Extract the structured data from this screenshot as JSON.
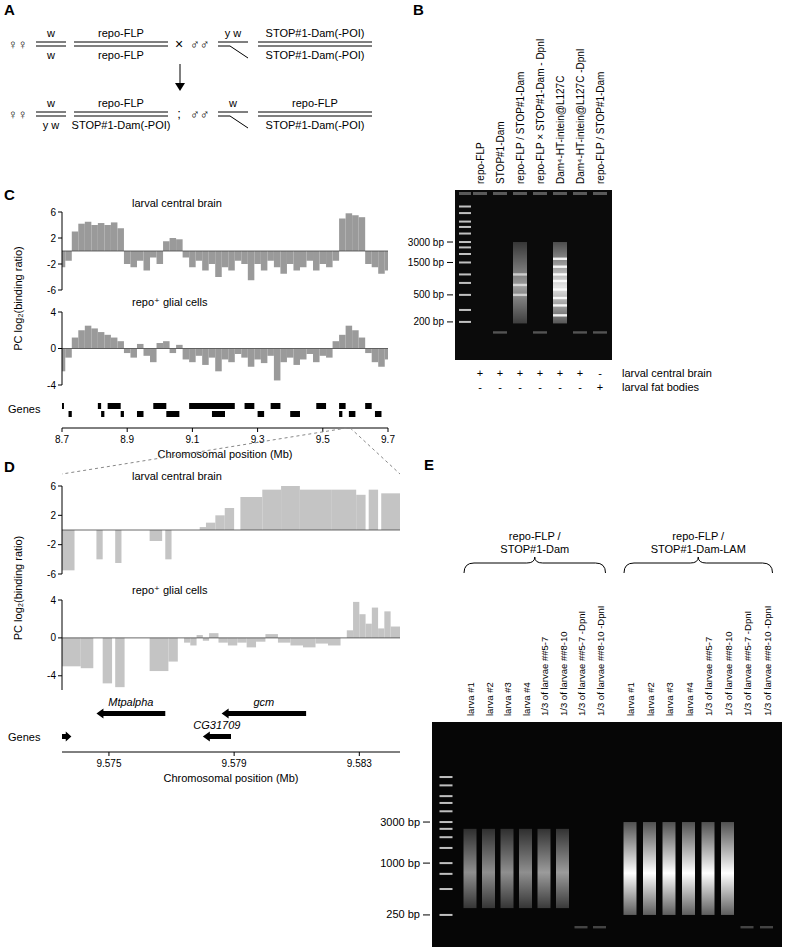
{
  "A": {
    "label": "A",
    "parents": [
      {
        "sex": "♀♀",
        "x": [
          "w",
          "w"
        ],
        "autosome": [
          "repo-FLP",
          "repo-FLP"
        ]
      },
      {
        "sex": "♂♂",
        "x": [
          "y w"
        ],
        "autosome": [
          "STOP#1-Dam(-POI)",
          "STOP#1-Dam(-POI)"
        ]
      }
    ],
    "cross_symbol": "×",
    "progeny": [
      {
        "sex": "♀♀",
        "x": [
          "w",
          "y w"
        ],
        "autosome": [
          "repo-FLP",
          "STOP#1-Dam(-POI)"
        ]
      },
      {
        "sex": "♂♂",
        "x": [
          "w"
        ],
        "autosome": [
          "repo-FLP",
          "STOP#1-Dam(-POI)"
        ]
      }
    ],
    "separator": ";"
  },
  "B": {
    "label": "B",
    "gel": {
      "log": true,
      "ylim": [
        55,
        17500
      ],
      "yticks": [
        {
          "value": 3000,
          "label": "3000 bp"
        },
        {
          "value": 1500,
          "label": "1500 bp"
        },
        {
          "value": 500,
          "label": "500 bp"
        },
        {
          "value": 200,
          "label": "200 bp"
        }
      ],
      "ladder": [
        10000,
        8000,
        6000,
        5000,
        4000,
        3000,
        2500,
        2000,
        1500,
        1000,
        750,
        500,
        300,
        200
      ]
    },
    "lanes": [
      {
        "label": "repo-FLP",
        "marks": [
          "+",
          "-"
        ],
        "smear": null,
        "bands": []
      },
      {
        "label": "STOP#1-Dam",
        "marks": [
          "+",
          "-"
        ],
        "smear": null,
        "bands": [
          140
        ],
        "intensity": 0.3
      },
      {
        "label": "repo-FLP / STOP#1-Dam",
        "marks": [
          "+",
          "-"
        ],
        "smear": [
          190,
          3000
        ],
        "bands": [
          500,
          700,
          1000
        ],
        "intensity": 0.6
      },
      {
        "label": "repo-FLP × STOP#1-Dam - DpnI",
        "marks": [
          "+",
          "-"
        ],
        "smear": null,
        "bands": [
          140
        ],
        "intensity": 0.3
      },
      {
        "label": "Dam⁴-HT-intein@L127C",
        "marks": [
          "+",
          "-"
        ],
        "smear": [
          190,
          3000
        ],
        "bands": [
          250,
          350,
          450,
          600,
          800,
          1000,
          1300,
          1700
        ],
        "intensity": 0.9
      },
      {
        "label": "Dam⁴-HT-intein@L127C -DpnI",
        "marks": [
          "+",
          "-"
        ],
        "smear": null,
        "bands": [
          140
        ],
        "intensity": 0.3
      },
      {
        "label": "repo-FLP / STOP#1-Dam",
        "marks": [
          "-",
          "+"
        ],
        "smear": null,
        "bands": [
          140
        ],
        "intensity": 0.3
      }
    ],
    "rows": [
      "larval central brain",
      "larval fat bodies"
    ]
  },
  "chart_data": [
    {
      "type": "bar",
      "panel": "C",
      "ylabel": "PC log₂(binding ratio)",
      "xlabel": "Chromosomal position (Mb)",
      "xlim": [
        8.7,
        9.7
      ],
      "xticks": [
        8.7,
        8.9,
        9.1,
        9.3,
        9.5,
        9.7
      ],
      "x": [
        8.7,
        8.72,
        8.74,
        8.76,
        8.78,
        8.8,
        8.82,
        8.84,
        8.86,
        8.88,
        8.9,
        8.92,
        8.94,
        8.96,
        8.98,
        9,
        9.02,
        9.04,
        9.06,
        9.08,
        9.1,
        9.12,
        9.14,
        9.16,
        9.18,
        9.2,
        9.22,
        9.24,
        9.26,
        9.28,
        9.3,
        9.32,
        9.34,
        9.36,
        9.38,
        9.4,
        9.42,
        9.44,
        9.46,
        9.48,
        9.5,
        9.52,
        9.54,
        9.56,
        9.58,
        9.6,
        9.62,
        9.64,
        9.66,
        9.68,
        9.7
      ],
      "series": [
        {
          "name": "larval central brain",
          "color": "#9a9a9a",
          "ylim": [
            -6,
            6
          ],
          "yticks": [
            6,
            2,
            -2,
            -6
          ],
          "values": [
            -2.5,
            -1.5,
            3,
            4.2,
            4.5,
            4,
            4.3,
            4,
            4.4,
            3.5,
            -2,
            -2.5,
            -1.5,
            -3,
            -1,
            -2,
            1.5,
            2,
            1.8,
            -1,
            -2.5,
            -1.5,
            -3,
            -2,
            -4,
            -2.5,
            -3,
            -1.5,
            -2,
            -4.5,
            -2,
            -3,
            -1.5,
            -2.5,
            -3.5,
            -2,
            -3,
            -2.5,
            -1.5,
            -3,
            -2,
            -2.5,
            -1.5,
            5,
            5.8,
            5.5,
            5.2,
            -2,
            -2.5,
            -3.5,
            -3
          ]
        },
        {
          "name": "repo⁺ glial cells",
          "color": "#9a9a9a",
          "ylim": [
            -4,
            4
          ],
          "yticks": [
            4,
            0,
            -4
          ],
          "values": [
            -2.5,
            -1,
            1.2,
            2,
            2.5,
            2.2,
            1.8,
            1.5,
            1.2,
            0.8,
            -0.5,
            -1,
            0.5,
            -0.8,
            -1.5,
            0.6,
            0.8,
            -0.5,
            0.4,
            -1.2,
            -1.5,
            -0.8,
            -1.8,
            -1,
            -2.5,
            -1.2,
            -1.5,
            -0.6,
            -1,
            -2,
            -1.2,
            -1.6,
            -0.8,
            -3.5,
            -1.5,
            -1,
            -1.8,
            -1.2,
            -0.6,
            -1.5,
            -0.8,
            -1,
            0.8,
            1.5,
            2.5,
            2,
            1.2,
            -0.5,
            -1.5,
            -2,
            -1.2
          ]
        }
      ],
      "genes": {
        "label": "Genes",
        "items": [
          {
            "start": 8.7,
            "end": 8.706,
            "row": 0
          },
          {
            "start": 8.81,
            "end": 8.82,
            "row": 0
          },
          {
            "start": 8.84,
            "end": 8.88,
            "row": 0
          },
          {
            "start": 8.98,
            "end": 9.02,
            "row": 0
          },
          {
            "start": 9.09,
            "end": 9.23,
            "row": 0
          },
          {
            "start": 9.26,
            "end": 9.29,
            "row": 0
          },
          {
            "start": 9.34,
            "end": 9.37,
            "row": 0
          },
          {
            "start": 9.48,
            "end": 9.51,
            "row": 0
          },
          {
            "start": 9.55,
            "end": 9.57,
            "row": 0
          },
          {
            "start": 9.63,
            "end": 9.65,
            "row": 0
          },
          {
            "start": 8.72,
            "end": 8.73,
            "row": 1
          },
          {
            "start": 8.82,
            "end": 8.83,
            "row": 1
          },
          {
            "start": 8.88,
            "end": 8.89,
            "row": 1
          },
          {
            "start": 8.93,
            "end": 8.95,
            "row": 1
          },
          {
            "start": 9.02,
            "end": 9.06,
            "row": 1
          },
          {
            "start": 9.16,
            "end": 9.2,
            "row": 1
          },
          {
            "start": 9.3,
            "end": 9.32,
            "row": 1
          },
          {
            "start": 9.4,
            "end": 9.43,
            "row": 1
          },
          {
            "start": 9.55,
            "end": 9.56,
            "row": 1
          },
          {
            "start": 9.58,
            "end": 9.6,
            "row": 1
          },
          {
            "start": 9.66,
            "end": 9.68,
            "row": 1
          }
        ]
      }
    },
    {
      "type": "bar",
      "panel": "D",
      "ylabel": "PC log₂(binding ratio)",
      "xlabel": "Chromosomal position (Mb)",
      "xlim": [
        9.5735,
        9.5843
      ],
      "xticks": [
        9.575,
        9.579,
        9.583
      ],
      "series": [
        {
          "name": "larval central brain",
          "color": "#c4c4c4",
          "ylim": [
            -6,
            6
          ],
          "yticks": [
            6,
            2,
            -2,
            -6
          ],
          "x_start": [
            9.5735,
            9.5746,
            9.5752,
            9.5763,
            9.5768,
            9.5779,
            9.5781,
            9.5784,
            9.5787,
            9.5792,
            9.5799,
            9.5805,
            9.5811,
            9.5821,
            9.5829,
            9.5833,
            9.5837
          ],
          "x_end": [
            9.5739,
            9.5748,
            9.5754,
            9.5767,
            9.577,
            9.5781,
            9.5784,
            9.5787,
            9.579,
            9.5799,
            9.5805,
            9.5811,
            9.5821,
            9.5829,
            9.5832,
            9.5836,
            9.5843
          ],
          "values": [
            -5.5,
            -4,
            -4.5,
            -1.5,
            -4,
            0.4,
            1,
            2,
            3,
            4.5,
            5.5,
            6,
            5.5,
            5.5,
            4.8,
            5.5,
            5
          ]
        },
        {
          "name": "repo⁺ glial cells",
          "color": "#c4c4c4",
          "ylim": [
            -5.5,
            4
          ],
          "yticks": [
            4,
            0,
            -4
          ],
          "x_start": [
            9.5735,
            9.5741,
            9.5748,
            9.5752,
            9.5763,
            9.5769,
            9.5774,
            9.5776,
            9.5778,
            9.578,
            9.5782,
            9.5785,
            9.5788,
            9.5791,
            9.5794,
            9.5797,
            9.58,
            9.5804,
            9.5808,
            9.5812,
            9.5816,
            9.582,
            9.5826,
            9.5828,
            9.583,
            9.5832,
            9.5834,
            9.5836,
            9.5838,
            9.584
          ],
          "x_end": [
            9.5741,
            9.5745,
            9.5751,
            9.5755,
            9.5769,
            9.5772,
            9.5776,
            9.5778,
            9.578,
            9.5782,
            9.5785,
            9.5788,
            9.5791,
            9.5794,
            9.5797,
            9.58,
            9.5804,
            9.5808,
            9.5812,
            9.5816,
            9.582,
            9.5824,
            9.5828,
            9.583,
            9.5832,
            9.5834,
            9.5836,
            9.5838,
            9.584,
            9.5843
          ],
          "values": [
            -3,
            -3.2,
            -4.8,
            -5.2,
            -3.5,
            -2.5,
            -0.5,
            -0.8,
            0.3,
            -0.3,
            0.5,
            -0.5,
            -0.8,
            -0.5,
            -1,
            -0.4,
            0.4,
            -0.5,
            -0.8,
            -1,
            -0.6,
            -0.8,
            0.8,
            3.8,
            2.5,
            1.5,
            3.2,
            1,
            2.8,
            1.2
          ]
        }
      ],
      "genes": {
        "label": "Genes",
        "items": [
          {
            "start": 9.5735,
            "end": 9.5738,
            "row": 1,
            "strand": "+"
          },
          {
            "start": 9.5746,
            "end": 9.5768,
            "row": 0,
            "strand": "-",
            "label": "Mtpalpha"
          },
          {
            "start": 9.578,
            "end": 9.5789,
            "row": 1,
            "strand": "-",
            "label": "CG31709"
          },
          {
            "start": 9.5786,
            "end": 9.5813,
            "row": 0,
            "strand": "-",
            "label": "gcm"
          }
        ]
      }
    }
  ],
  "E": {
    "label": "E",
    "gel": {
      "log": true,
      "ylim": [
        106,
        43600
      ],
      "yticks": [
        {
          "value": 3000,
          "label": "3000 bp"
        },
        {
          "value": 1000,
          "label": "1000 bp"
        },
        {
          "value": 250,
          "label": "250 bp"
        }
      ],
      "ladder": [
        10000,
        8000,
        6000,
        5000,
        4000,
        3000,
        2500,
        2000,
        1500,
        1000,
        750,
        500,
        250
      ]
    },
    "groups": [
      {
        "label": [
          "repo-FLP /",
          "STOP#1-Dam"
        ],
        "lanes": [
          {
            "label": "larva #1",
            "smear": [
              300,
              2500
            ],
            "bands": [],
            "intensity": 0.55
          },
          {
            "label": "larva #2",
            "smear": [
              300,
              2500
            ],
            "bands": [],
            "intensity": 0.55
          },
          {
            "label": "larva #3",
            "smear": [
              300,
              2500
            ],
            "bands": [],
            "intensity": 0.55
          },
          {
            "label": "larva #4",
            "smear": [
              300,
              2500
            ],
            "bands": [],
            "intensity": 0.55
          },
          {
            "label": "1/3 of larvae ##5-7",
            "smear": [
              300,
              2500
            ],
            "bands": [],
            "intensity": 0.6
          },
          {
            "label": "1/3 of larvae ##8-10",
            "smear": [
              300,
              2500
            ],
            "bands": [],
            "intensity": 0.6
          },
          {
            "label": "1/3 of larvae ##5-7 -DpnI",
            "smear": null,
            "bands": [
              180
            ],
            "intensity": 0.25
          },
          {
            "label": "1/3 of larvae ##8-10 -DpnI",
            "smear": null,
            "bands": [
              180
            ],
            "intensity": 0.25
          }
        ]
      },
      {
        "label": [
          "repo-FLP /",
          "STOP#1-Dam-LAM"
        ],
        "lanes": [
          {
            "label": "larva #1",
            "smear": [
              250,
              3000
            ],
            "bands": [],
            "intensity": 1
          },
          {
            "label": "larva #2",
            "smear": [
              250,
              3000
            ],
            "bands": [],
            "intensity": 1
          },
          {
            "label": "larva #3",
            "smear": [
              250,
              3000
            ],
            "bands": [],
            "intensity": 1
          },
          {
            "label": "larva #4",
            "smear": [
              250,
              3000
            ],
            "bands": [],
            "intensity": 1
          },
          {
            "label": "1/3 of larvae ##5-7",
            "smear": [
              250,
              3000
            ],
            "bands": [],
            "intensity": 1
          },
          {
            "label": "1/3 of larvae ##8-10",
            "smear": [
              250,
              3000
            ],
            "bands": [],
            "intensity": 1
          },
          {
            "label": "1/3 of larvae ##5-7 -DpnI",
            "smear": null,
            "bands": [
              180
            ],
            "intensity": 0.25
          },
          {
            "label": "1/3 of larvae ##8-10 -DpnI",
            "smear": null,
            "bands": [
              180
            ],
            "intensity": 0.25
          }
        ]
      }
    ]
  }
}
